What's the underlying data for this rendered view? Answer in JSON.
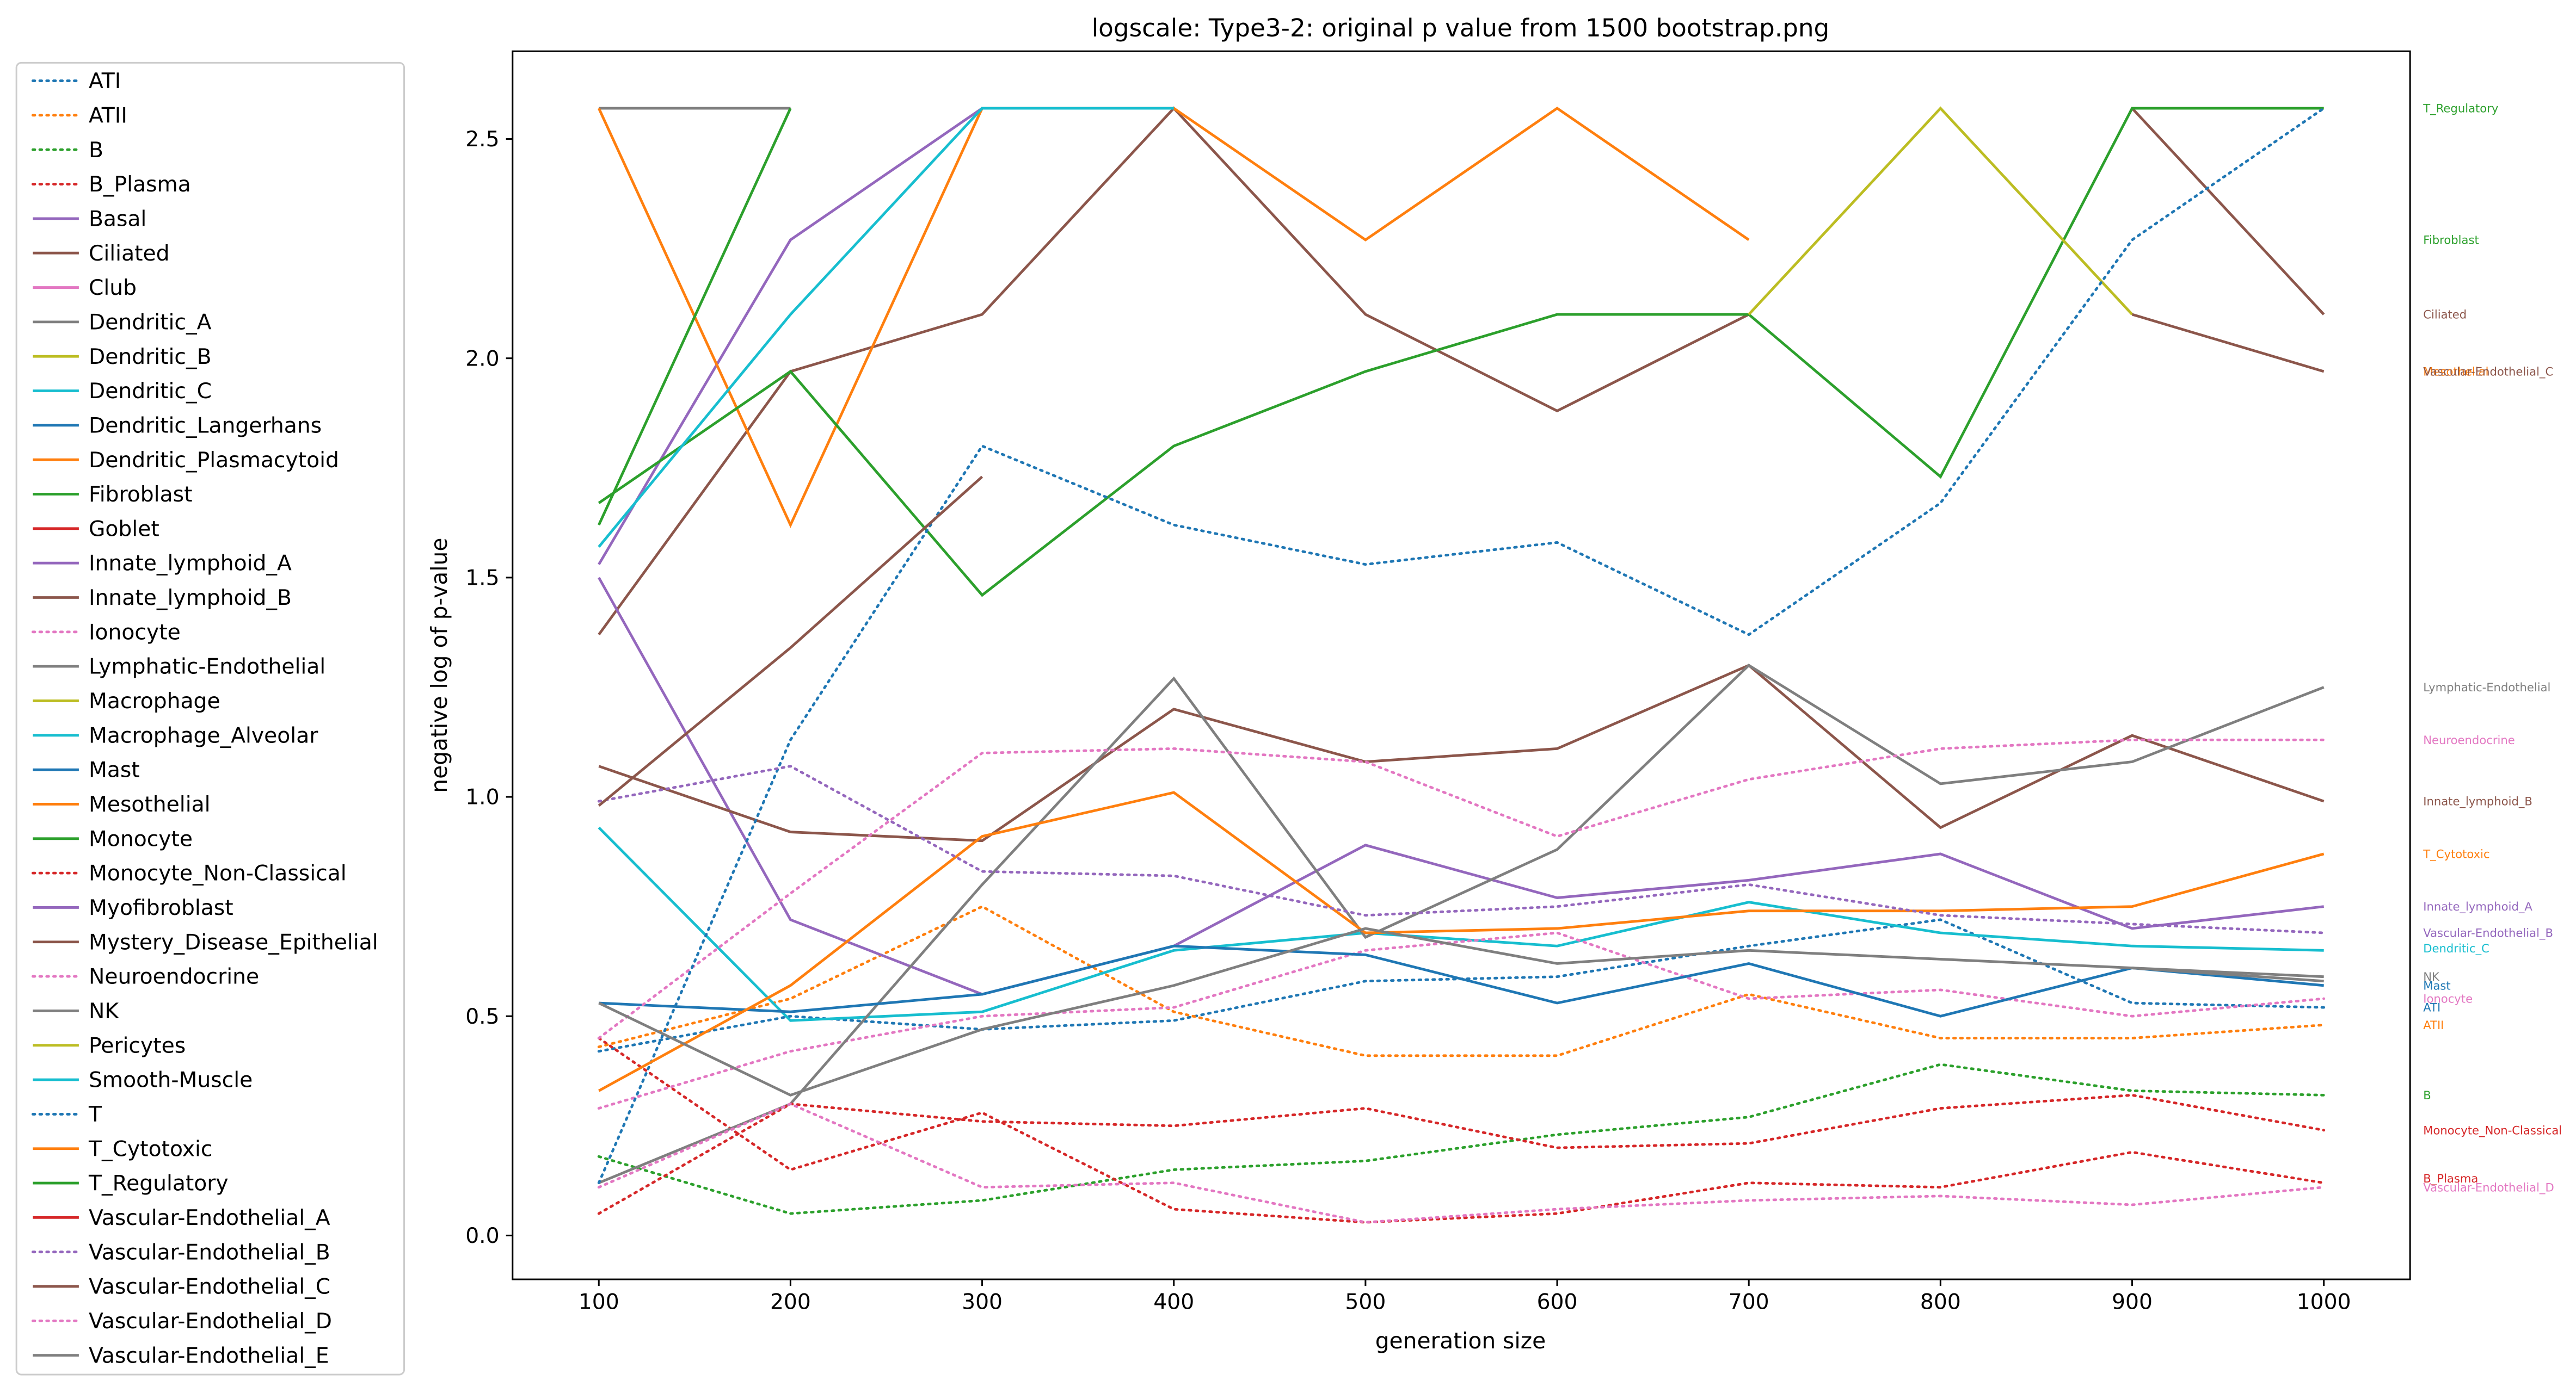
{
  "chart_data": {
    "type": "line",
    "title": "logscale: Type3-2: original p value from 1500 bootstrap.png",
    "x_label": "generation size",
    "y_label": "negative log of p-value",
    "x": [
      100,
      200,
      300,
      400,
      500,
      600,
      700,
      800,
      900,
      1000
    ],
    "xlim": [
      55,
      1045
    ],
    "ylim": [
      -0.1,
      2.7
    ],
    "xticks": [
      100,
      200,
      300,
      400,
      500,
      600,
      700,
      800,
      900,
      1000
    ],
    "yticks": [
      {
        "value": 0,
        "label": "0.0"
      },
      0.5,
      {
        "value": 1,
        "label": "1.0"
      },
      1.5,
      {
        "value": 2,
        "label": "2.0"
      },
      2.5
    ],
    "legend": "outside-left",
    "series": [
      {
        "name": "ATI",
        "color": "#1f77b4",
        "style": "dotted",
        "values": [
          0.42,
          0.5,
          0.47,
          0.49,
          0.58,
          0.59,
          0.66,
          0.72,
          0.53,
          0.52
        ]
      },
      {
        "name": "ATII",
        "color": "#ff7f0e",
        "style": "dotted",
        "values": [
          0.43,
          0.54,
          0.75,
          0.51,
          0.41,
          0.41,
          0.55,
          0.45,
          0.45,
          0.48
        ]
      },
      {
        "name": "B",
        "color": "#2ca02c",
        "style": "dotted",
        "values": [
          0.18,
          0.05,
          0.08,
          0.15,
          0.17,
          0.23,
          0.27,
          0.39,
          0.33,
          0.32
        ]
      },
      {
        "name": "B_Plasma",
        "color": "#d62728",
        "style": "dotted",
        "values": [
          0.45,
          0.15,
          0.28,
          0.06,
          0.03,
          0.05,
          0.12,
          0.11,
          0.19,
          0.12
        ]
      },
      {
        "name": "Basal",
        "color": "#9467bd",
        "style": "solid",
        "values": [
          1.53,
          2.27,
          2.57,
          null,
          null,
          null,
          null,
          null,
          null,
          null
        ]
      },
      {
        "name": "Ciliated",
        "color": "#8c564b",
        "style": "solid",
        "values": [
          1.37,
          1.97,
          2.1,
          2.57,
          2.1,
          1.88,
          2.1,
          null,
          2.57,
          2.1
        ]
      },
      {
        "name": "Club",
        "color": "#e377c2",
        "style": "solid",
        "values": [
          null,
          null,
          null,
          null,
          null,
          null,
          null,
          null,
          null,
          null
        ]
      },
      {
        "name": "Dendritic_A",
        "color": "#7f7f7f",
        "style": "solid",
        "values": [
          2.57,
          2.57,
          null,
          null,
          null,
          null,
          null,
          null,
          null,
          null
        ]
      },
      {
        "name": "Dendritic_B",
        "color": "#bcbd22",
        "style": "solid",
        "values": [
          null,
          null,
          null,
          null,
          null,
          null,
          null,
          null,
          null,
          null
        ]
      },
      {
        "name": "Dendritic_C",
        "color": "#17becf",
        "style": "solid",
        "values": [
          0.93,
          0.49,
          0.51,
          0.65,
          0.69,
          0.66,
          0.76,
          0.69,
          0.66,
          0.65
        ]
      },
      {
        "name": "Dendritic_Langerhans",
        "color": "#1f77b4",
        "style": "solid",
        "values": [
          null,
          null,
          null,
          null,
          null,
          null,
          null,
          null,
          null,
          null
        ]
      },
      {
        "name": "Dendritic_Plasmacytoid",
        "color": "#ff7f0e",
        "style": "solid",
        "values": [
          2.57,
          1.62,
          2.57,
          2.57,
          2.27,
          2.57,
          2.27,
          null,
          null,
          null
        ]
      },
      {
        "name": "Fibroblast",
        "color": "#2ca02c",
        "style": "solid",
        "values": [
          1.67,
          1.97,
          1.46,
          1.8,
          1.97,
          2.1,
          2.1,
          1.73,
          2.57,
          2.57
        ]
      },
      {
        "name": "Goblet",
        "color": "#d62728",
        "style": "solid",
        "values": [
          null,
          null,
          null,
          null,
          null,
          null,
          null,
          null,
          null,
          null
        ]
      },
      {
        "name": "Innate_lymphoid_A",
        "color": "#9467bd",
        "style": "solid",
        "values": [
          1.5,
          0.72,
          0.55,
          0.66,
          0.89,
          0.77,
          0.81,
          0.87,
          0.7,
          0.75
        ]
      },
      {
        "name": "Innate_lymphoid_B",
        "color": "#8c564b",
        "style": "solid",
        "values": [
          1.07,
          0.92,
          0.9,
          1.2,
          1.08,
          1.11,
          1.3,
          0.93,
          1.14,
          0.99
        ]
      },
      {
        "name": "Ionocyte",
        "color": "#e377c2",
        "style": "dotted",
        "values": [
          0.29,
          0.42,
          0.5,
          0.52,
          0.65,
          0.69,
          0.54,
          0.56,
          0.5,
          0.54
        ]
      },
      {
        "name": "Lymphatic-Endothelial",
        "color": "#7f7f7f",
        "style": "solid",
        "values": [
          0.12,
          0.3,
          0.8,
          1.27,
          0.68,
          0.88,
          1.3,
          1.03,
          1.08,
          1.25
        ]
      },
      {
        "name": "Macrophage",
        "color": "#bcbd22",
        "style": "solid",
        "values": [
          null,
          null,
          null,
          null,
          null,
          null,
          2.1,
          2.57,
          2.1,
          null
        ]
      },
      {
        "name": "Macrophage_Alveolar",
        "color": "#17becf",
        "style": "solid",
        "values": [
          1.57,
          2.1,
          2.57,
          2.57,
          null,
          null,
          null,
          null,
          null,
          null
        ]
      },
      {
        "name": "Mast",
        "color": "#1f77b4",
        "style": "solid",
        "values": [
          0.53,
          0.51,
          0.55,
          0.66,
          0.64,
          0.53,
          0.62,
          0.5,
          0.61,
          0.57
        ]
      },
      {
        "name": "Mesothelial",
        "color": "#ff7f0e",
        "style": "solid",
        "values": [
          null,
          null,
          null,
          null,
          null,
          null,
          null,
          null,
          null,
          null
        ]
      },
      {
        "name": "Monocyte",
        "color": "#2ca02c",
        "style": "solid",
        "values": [
          1.62,
          2.57,
          null,
          null,
          null,
          null,
          null,
          null,
          null,
          null
        ]
      },
      {
        "name": "Monocyte_Non-Classical",
        "color": "#d62728",
        "style": "dotted",
        "values": [
          0.05,
          0.3,
          0.26,
          0.25,
          0.29,
          0.2,
          0.21,
          0.29,
          0.32,
          0.24
        ]
      },
      {
        "name": "Myofibroblast",
        "color": "#9467bd",
        "style": "solid",
        "values": [
          null,
          null,
          null,
          null,
          null,
          null,
          null,
          null,
          null,
          null
        ]
      },
      {
        "name": "Mystery_Disease_Epithelial",
        "color": "#8c564b",
        "style": "solid",
        "values": [
          null,
          null,
          null,
          null,
          null,
          null,
          null,
          null,
          null,
          null
        ]
      },
      {
        "name": "Neuroendocrine",
        "color": "#e377c2",
        "style": "dotted",
        "values": [
          0.45,
          0.78,
          1.1,
          1.11,
          1.08,
          0.91,
          1.04,
          1.11,
          1.13,
          1.13
        ]
      },
      {
        "name": "NK",
        "color": "#7f7f7f",
        "style": "solid",
        "values": [
          null,
          null,
          null,
          null,
          null,
          null,
          null,
          null,
          0.61,
          0.58
        ]
      },
      {
        "name": "Pericytes",
        "color": "#bcbd22",
        "style": "solid",
        "values": [
          null,
          null,
          null,
          null,
          null,
          null,
          null,
          null,
          null,
          null
        ]
      },
      {
        "name": "Smooth-Muscle",
        "color": "#17becf",
        "style": "solid",
        "values": [
          null,
          null,
          null,
          null,
          null,
          null,
          null,
          null,
          null,
          null
        ]
      },
      {
        "name": "T",
        "color": "#1f77b4",
        "style": "dotted",
        "values": [
          0.12,
          1.13,
          1.8,
          1.62,
          1.53,
          1.58,
          1.37,
          1.67,
          2.27,
          2.57
        ]
      },
      {
        "name": "T_Cytotoxic",
        "color": "#ff7f0e",
        "style": "solid",
        "values": [
          0.33,
          0.57,
          0.91,
          1.01,
          0.69,
          0.7,
          0.74,
          0.74,
          0.75,
          0.87
        ]
      },
      {
        "name": "T_Regulatory",
        "color": "#2ca02c",
        "style": "solid",
        "values": [
          null,
          null,
          null,
          null,
          null,
          null,
          null,
          null,
          null,
          null
        ]
      },
      {
        "name": "Vascular-Endothelial_A",
        "color": "#d62728",
        "style": "solid",
        "values": [
          null,
          null,
          null,
          null,
          null,
          null,
          null,
          null,
          null,
          null
        ]
      },
      {
        "name": "Vascular-Endothelial_B",
        "color": "#9467bd",
        "style": "dotted",
        "values": [
          0.99,
          1.07,
          0.83,
          0.82,
          0.73,
          0.75,
          0.8,
          0.73,
          0.71,
          0.69
        ]
      },
      {
        "name": "Vascular-Endothelial_C",
        "color": "#8c564b",
        "style": "solid",
        "values": [
          0.98,
          1.34,
          1.73,
          null,
          null,
          null,
          null,
          null,
          2.1,
          1.97
        ]
      },
      {
        "name": "Vascular-Endothelial_D",
        "color": "#e377c2",
        "style": "dotted",
        "values": [
          0.11,
          0.3,
          0.11,
          0.12,
          0.03,
          0.06,
          0.08,
          0.09,
          0.07,
          0.11
        ]
      },
      {
        "name": "Vascular-Endothelial_E",
        "color": "#7f7f7f",
        "style": "solid",
        "values": [
          0.53,
          0.32,
          0.47,
          0.57,
          0.7,
          0.62,
          0.65,
          0.63,
          0.61,
          0.59
        ]
      }
    ],
    "annotations": [
      {
        "text": "T_Regulatory",
        "y": 2.57,
        "color": "#2ca02c"
      },
      {
        "text": "Fibroblast",
        "y": 2.27,
        "color": "#2ca02c"
      },
      {
        "text": "Ciliated",
        "y": 2.1,
        "color": "#8c564b"
      },
      {
        "text": "Mesothelial",
        "y": 1.97,
        "color": "#ff7f0e"
      },
      {
        "text": "Vascular-Endothelial_C",
        "y": 1.97,
        "color": "#8c564b"
      },
      {
        "text": "Lymphatic-Endothelial",
        "y": 1.25,
        "color": "#7f7f7f"
      },
      {
        "text": "Neuroendocrine",
        "y": 1.13,
        "color": "#e377c2"
      },
      {
        "text": "Innate_lymphoid_B",
        "y": 0.99,
        "color": "#8c564b"
      },
      {
        "text": "T_Cytotoxic",
        "y": 0.87,
        "color": "#ff7f0e"
      },
      {
        "text": "Innate_lymphoid_A",
        "y": 0.75,
        "color": "#9467bd"
      },
      {
        "text": "Vascular-Endothelial_B",
        "y": 0.69,
        "color": "#9467bd"
      },
      {
        "text": "Dendritic_C",
        "y": 0.655,
        "color": "#17becf"
      },
      {
        "text": "NK",
        "y": 0.59,
        "color": "#7f7f7f"
      },
      {
        "text": "Mast",
        "y": 0.57,
        "color": "#1f77b4"
      },
      {
        "text": "Ionocyte",
        "y": 0.54,
        "color": "#e377c2"
      },
      {
        "text": "ATI",
        "y": 0.52,
        "color": "#1f77b4"
      },
      {
        "text": "ATII",
        "y": 0.48,
        "color": "#ff7f0e"
      },
      {
        "text": "B",
        "y": 0.32,
        "color": "#2ca02c"
      },
      {
        "text": "Monocyte_Non-Classical",
        "y": 0.24,
        "color": "#d62728"
      },
      {
        "text": "B_Plasma",
        "y": 0.13,
        "color": "#d62728"
      },
      {
        "text": "Vascular-Endothelial_D",
        "y": 0.11,
        "color": "#e377c2"
      }
    ]
  }
}
